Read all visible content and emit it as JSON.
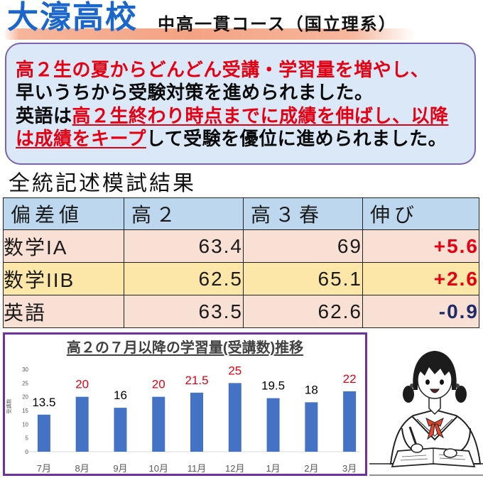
{
  "header": {
    "school_name": "大濠高校",
    "course": "中高一貫コース（国立理系）"
  },
  "callout": {
    "line1": "高２生の夏からどんどん受講・学習量を増やし、",
    "line2": "早いうちから受験対策を進められました。",
    "line3_black": "英語は",
    "line3_red": "高２生終わり時点までに成績を伸ばし、以降",
    "line4_red": "は成績をキープ",
    "line4_black": "して受験を優位に進められました。"
  },
  "results": {
    "title": "全統記述模試結果",
    "headers": [
      "偏差値",
      "高２",
      "高３春",
      "伸び"
    ],
    "rows": [
      {
        "subject": "数学IA",
        "grade2": "63.4",
        "grade3_spring": "69",
        "growth": "+5.6",
        "growth_color": "#e60012"
      },
      {
        "subject": "数学IIB",
        "grade2": "62.5",
        "grade3_spring": "65.1",
        "growth": "+2.6",
        "growth_color": "#e60012"
      },
      {
        "subject": "英語",
        "grade2": "63.5",
        "grade3_spring": "62.6",
        "growth": "-0.9",
        "growth_color": "#1f2a6b"
      }
    ]
  },
  "chart_data": {
    "type": "bar",
    "title": "高２の７月以降の学習量(受講数)推移",
    "xlabel": "",
    "ylabel": "受講数",
    "categories": [
      "7月",
      "8月",
      "9月",
      "10月",
      "11月",
      "12月",
      "1月",
      "2月",
      "3月"
    ],
    "values": [
      13.5,
      20,
      16,
      20,
      21.5,
      25,
      19.5,
      18,
      22
    ],
    "label_colors": [
      "#000000",
      "#e60012",
      "#000000",
      "#e60012",
      "#e60012",
      "#e60012",
      "#000000",
      "#000000",
      "#e60012"
    ],
    "ylim": [
      0,
      30
    ],
    "yticks": [
      0,
      5,
      10,
      15,
      20,
      25,
      30
    ],
    "grid": false,
    "bar_color": "#4472c4"
  },
  "colors": {
    "brand_blue": "#1a66cc",
    "accent_red": "#e60012",
    "callout_bg": "#dbe8f8",
    "callout_border": "#7a63b3",
    "header_row_bg": "#bdd7ee",
    "peach_row_bg": "#f9e0d4",
    "gold_row_bg": "#fde7a8",
    "chart_frame": "#7030a0",
    "scarf_red": "#e8452d"
  }
}
